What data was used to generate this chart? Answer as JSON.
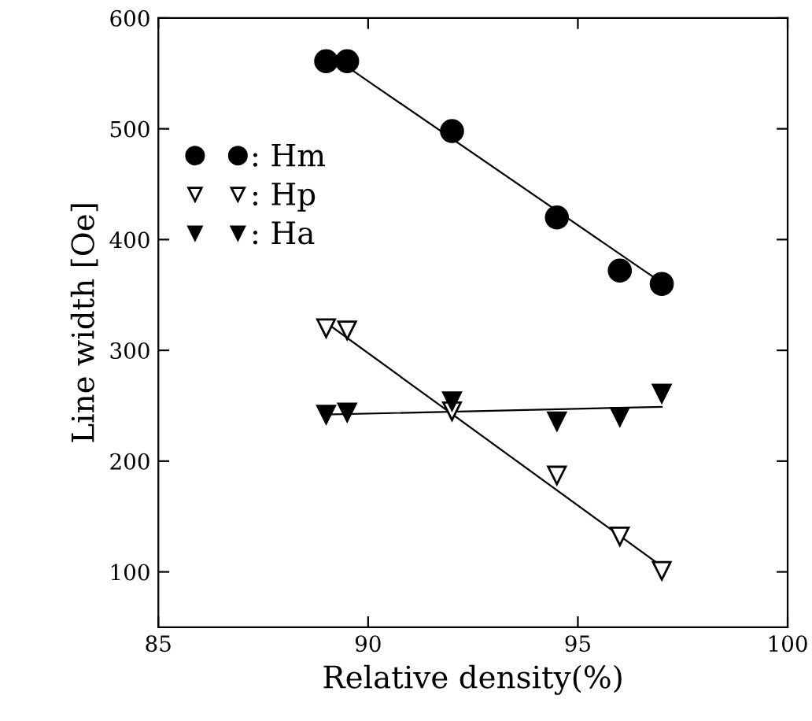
{
  "chart_data": {
    "type": "scatter",
    "xlabel": "Relative density(%)",
    "ylabel": "Line width [Oe]",
    "xlim": [
      85,
      100
    ],
    "xticks": [
      85,
      90,
      95,
      100
    ],
    "ylim": [
      50,
      600
    ],
    "yticks": [
      100,
      200,
      300,
      400,
      500,
      600
    ],
    "grid": false,
    "legend": "top left",
    "series": [
      {
        "name": ": Hm",
        "marker": "circle",
        "color": "#000000",
        "x": [
          89,
          89.5,
          92,
          94.5,
          96,
          97
        ],
        "values": [
          561,
          561,
          498,
          420,
          372,
          360
        ]
      },
      {
        "name": ": Hp",
        "marker": "triangle",
        "color": "#ffffff",
        "x": [
          89,
          89.5,
          92,
          94.5,
          96,
          97
        ],
        "values": [
          320,
          318,
          245,
          187,
          132,
          101
        ]
      },
      {
        "name": ": Ha",
        "marker": "triangle",
        "color": "#000000",
        "x": [
          89,
          89.5,
          92,
          94.5,
          96,
          97
        ],
        "values": [
          242,
          244,
          254,
          236,
          240,
          261
        ]
      },
      {
        "type": "line",
        "color": "#000000",
        "x": [
          89.5,
          97
        ],
        "values": [
          556,
          361
        ]
      },
      {
        "type": "line",
        "color": "#000000",
        "x": [
          89,
          97
        ],
        "values": [
          325,
          105
        ]
      },
      {
        "type": "line",
        "color": "#000000",
        "x": [
          89,
          97
        ],
        "values": [
          242,
          249
        ]
      }
    ]
  }
}
